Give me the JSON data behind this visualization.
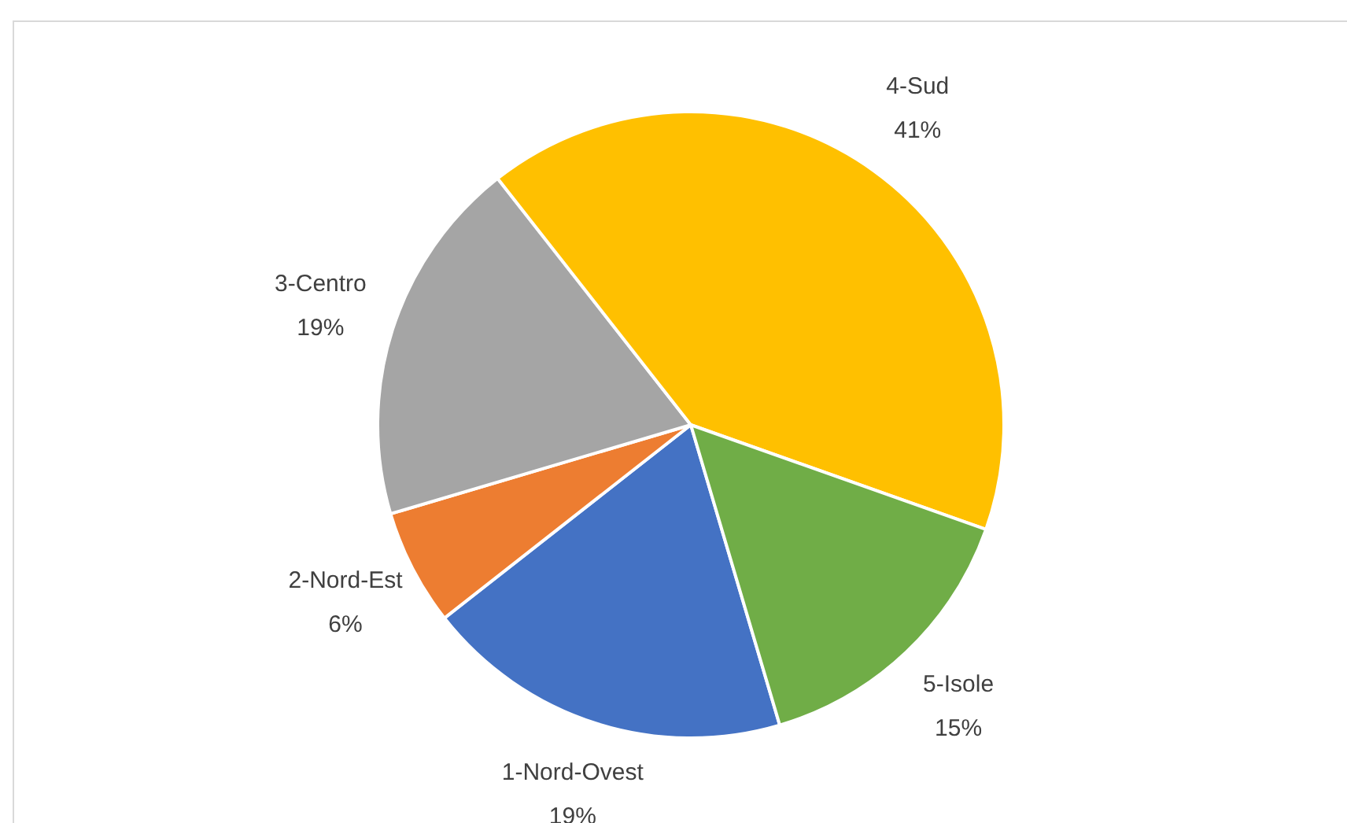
{
  "chart_data": {
    "type": "pie",
    "categories": [
      "1-Nord-Ovest",
      "2-Nord-Est",
      "3-Centro",
      "4-Sud",
      "5-Isole"
    ],
    "values": [
      19,
      6,
      19,
      41,
      15
    ],
    "value_labels": [
      "19%",
      "6%",
      "19%",
      "41%",
      "15%"
    ],
    "colors": [
      "#4472c4",
      "#ed7d31",
      "#a5a5a5",
      "#ffc000",
      "#70ad47"
    ],
    "legend": false
  }
}
